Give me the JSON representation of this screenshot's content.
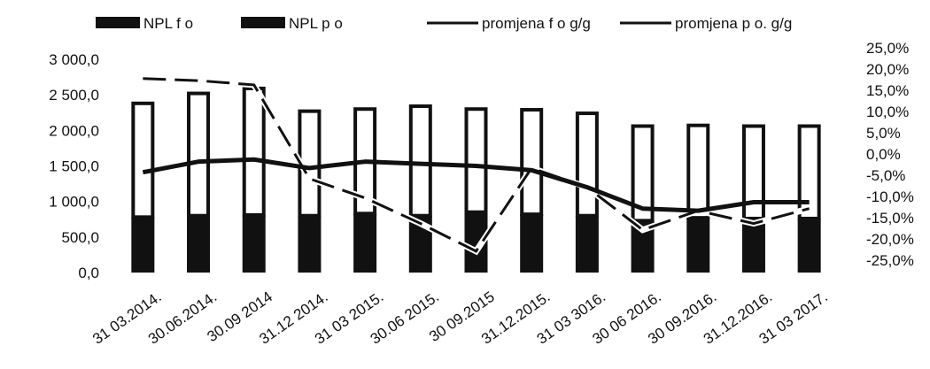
{
  "chart_data": {
    "type": "bar",
    "title": "",
    "xlabel": "",
    "ylabel": "",
    "ylim": [
      0,
      3000
    ],
    "y2lim": [
      -25,
      25
    ],
    "legend_position": "top",
    "grid": false,
    "categories": [
      "31 03.2014.",
      "30.06.2014.",
      "30.09 2014",
      "31.12 2014.",
      "31 03 2015.",
      "30.06 2015.",
      "30 09.2015",
      "31.12.2015.",
      "31 03 3016.",
      "30 06 2016.",
      "30 09.2016.",
      "31.12.2016.",
      "31 03 2017."
    ],
    "y_ticks": [
      "0,0",
      "500,0",
      "1 000,0",
      "1 500,0",
      "2 000,0",
      "2 500,0",
      "3 000,0"
    ],
    "y2_ticks": [
      "-25,0%",
      "-20,0%",
      "-15,0%",
      "-10,0%",
      "-5,0%",
      "0,0%",
      "5,0%",
      "10,0%",
      "15,0%",
      "20,0%",
      "25,0%"
    ],
    "series": [
      {
        "name": "NPL f o",
        "type": "bar",
        "axis": "left",
        "color": "#111111",
        "values": [
          780,
          800,
          810,
          800,
          830,
          800,
          850,
          820,
          800,
          730,
          770,
          760,
          760
        ]
      },
      {
        "name": "NPL p o",
        "type": "bar",
        "axis": "left",
        "color": "#ffffff",
        "values": [
          1600,
          1720,
          1780,
          1470,
          1470,
          1540,
          1450,
          1470,
          1440,
          1330,
          1300,
          1300,
          1300
        ]
      },
      {
        "name": "promjena f o g/g",
        "type": "line",
        "axis": "right",
        "color": "#111111",
        "values": [
          -1.5,
          1.0,
          1.5,
          -0.5,
          1.0,
          0.5,
          0.0,
          -1.0,
          -5.0,
          -10.0,
          -10.5,
          -8.5,
          -8.5
        ]
      },
      {
        "name": "promjena p o. g/g",
        "type": "line",
        "axis": "right",
        "color": "#111111",
        "dashed": true,
        "values": [
          20.5,
          20.0,
          19.0,
          -3.0,
          -7.5,
          -13.5,
          -20.0,
          -0.5,
          -5.0,
          -15.0,
          -10.5,
          -13.5,
          -10.0
        ]
      }
    ]
  }
}
